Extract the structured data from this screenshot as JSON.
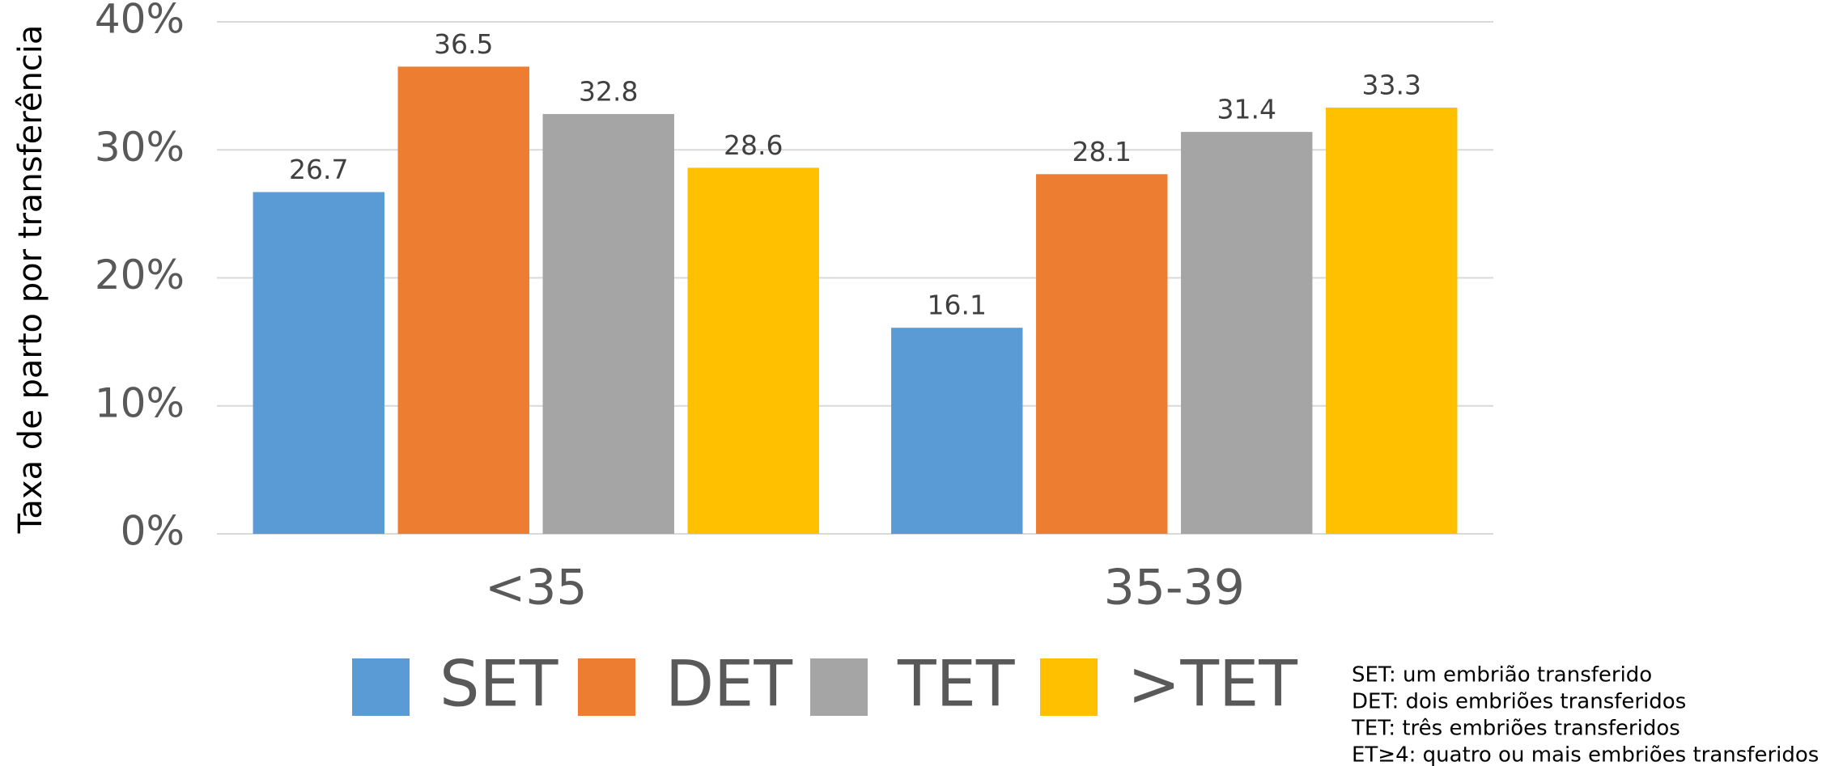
{
  "chart_data": {
    "type": "bar",
    "y_label": "Taxa de parto por transferência",
    "categories": [
      "<35",
      "35-39"
    ],
    "series": [
      {
        "name": "SET",
        "color": "#5b9bd5",
        "values": [
          26.7,
          16.1
        ]
      },
      {
        "name": "DET",
        "color": "#ed7d31",
        "values": [
          36.5,
          28.1
        ]
      },
      {
        "name": "TET",
        "color": "#a5a5a5",
        "values": [
          32.8,
          31.4
        ]
      },
      {
        "name": ">TET",
        "color": "#ffc000",
        "values": [
          28.6,
          33.3
        ]
      }
    ],
    "ylim": [
      0,
      40
    ],
    "yticks": [
      {
        "value": 0,
        "label": "0%"
      },
      {
        "value": 10,
        "label": "10%"
      },
      {
        "value": 20,
        "label": "20%"
      },
      {
        "value": 30,
        "label": "30%"
      },
      {
        "value": 40,
        "label": "40%"
      }
    ],
    "grid": true,
    "legend": "bottom",
    "annotations": [
      "SET: um embrião transferido",
      "DET: dois embriões transferidos",
      "TET: três embriões transferidos",
      "ET≥4: quatro ou mais embriões transferidos"
    ]
  }
}
